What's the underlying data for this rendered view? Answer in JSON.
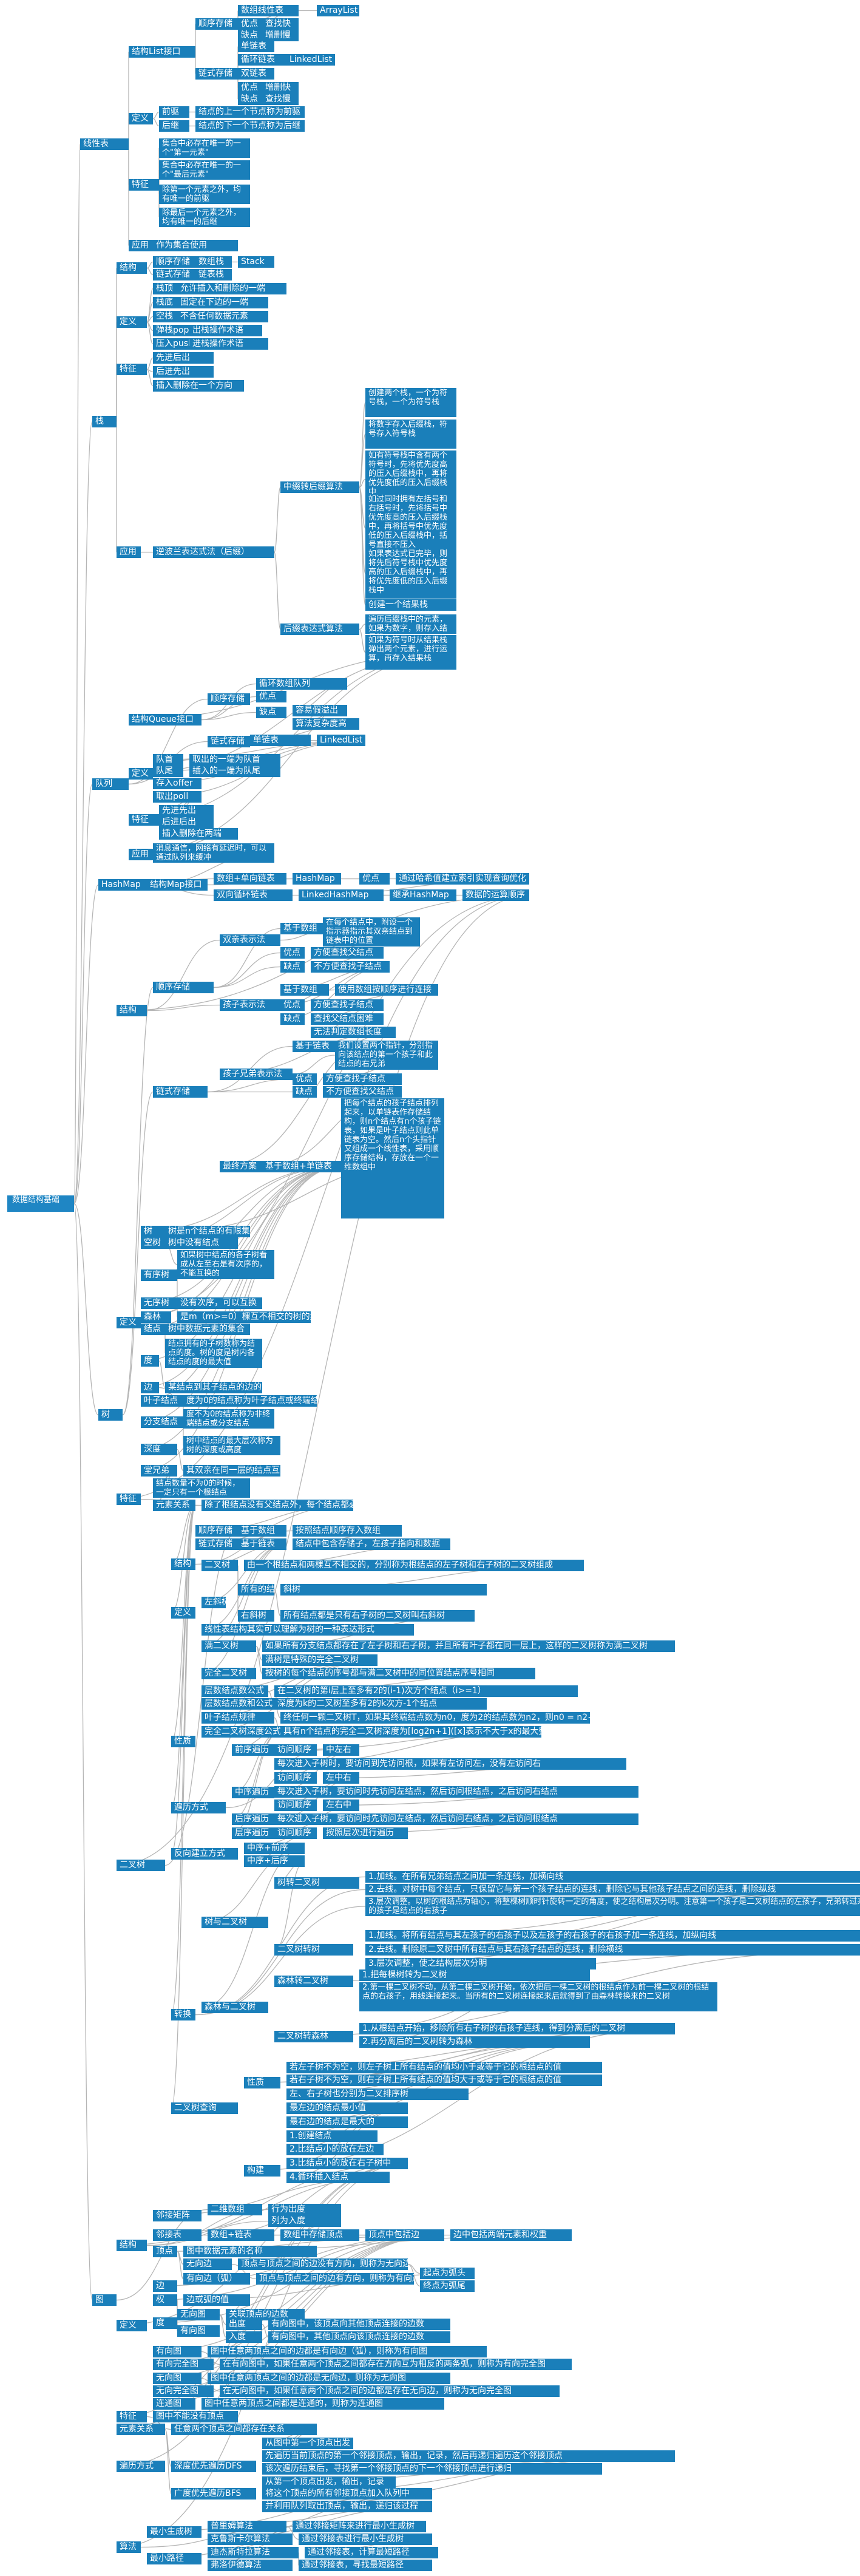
{
  "nodes": [
    {
      "t": "数据结构基础"
    },
    {
      "t": "线性表"
    },
    {
      "t": "结构List接口"
    },
    {
      "t": "顺序存储"
    },
    {
      "t": "数组线性表"
    },
    {
      "t": "ArrayList"
    },
    {
      "t": "优点"
    },
    {
      "t": "查找快"
    },
    {
      "t": "缺点"
    },
    {
      "t": "增删慢"
    },
    {
      "t": "链式存储"
    },
    {
      "t": "单链表"
    },
    {
      "t": "循环链表"
    },
    {
      "t": "LinkedList"
    },
    {
      "t": "双链表"
    },
    {
      "t": "优点"
    },
    {
      "t": "增删快"
    },
    {
      "t": "缺点"
    },
    {
      "t": "查找慢"
    },
    {
      "t": "定义"
    },
    {
      "t": "前驱"
    },
    {
      "t": "结点的上一个节点称为前驱"
    },
    {
      "t": "后继"
    },
    {
      "t": "结点的下一个节点称为后继"
    },
    {
      "t": "特征"
    },
    {
      "t": "集合中必存在唯一的一个\"第一元素\""
    },
    {
      "t": "集合中必存在唯一的一个\"最后元素\""
    },
    {
      "t": "除第一个元素之外，均有唯一的前驱"
    },
    {
      "t": "除最后一个元素之外，均有唯一的后继"
    },
    {
      "t": "应用"
    },
    {
      "t": "作为集合使用"
    },
    {
      "t": "栈"
    },
    {
      "t": "结构"
    },
    {
      "t": "顺序存储"
    },
    {
      "t": "数组栈"
    },
    {
      "t": "Stack"
    },
    {
      "t": "链式存储"
    },
    {
      "t": "链表栈"
    },
    {
      "t": "定义"
    },
    {
      "t": "栈顶"
    },
    {
      "t": "允许插入和删除的一端"
    },
    {
      "t": "栈底"
    },
    {
      "t": "固定在下边的一端"
    },
    {
      "t": "空栈"
    },
    {
      "t": "不含任何数据元素"
    },
    {
      "t": "弹栈pop"
    },
    {
      "t": "出栈操作术语"
    },
    {
      "t": "压入push"
    },
    {
      "t": "进栈操作术语"
    },
    {
      "t": "特征"
    },
    {
      "t": "先进后出"
    },
    {
      "t": "后进先出"
    },
    {
      "t": "插入删除在一个方向"
    },
    {
      "t": "应用"
    },
    {
      "t": "逆波兰表达式法（后缀）"
    },
    {
      "t": "中缀转后缀算法"
    },
    {
      "t": "创建两个栈，一个为符号栈，一个为符号栈"
    },
    {
      "t": "将数字存入后缀栈，符号存入符号栈"
    },
    {
      "t": "如有符号栈中含有两个符号时，先将优先度高的压入后缀栈中，再将优先度低的压入后缀栈中"
    },
    {
      "t": "如过同时拥有左括号和右括号时，先将括号中优先度高的压入后缀栈中，再将括号中优先度低的压入后缀栈中，括号直接不压入"
    },
    {
      "t": "如果表达式已完毕，则将先后符号栈中优先度高的压入后缀栈中，再将优先度低的压入后缀栈中"
    },
    {
      "t": "创建一个结果栈"
    },
    {
      "t": "后缀表达式算法"
    },
    {
      "t": "遍历后缀栈中的元素，如果为数字，则存入结果栈"
    },
    {
      "t": "如果为符号时从结果栈弹出两个元素，进行运算，再存入结果栈"
    },
    {
      "t": "队列"
    },
    {
      "t": "结构Queue接口"
    },
    {
      "t": "顺序存储"
    },
    {
      "t": "循环数组队列"
    },
    {
      "t": "优点"
    },
    {
      "t": "容易假溢出"
    },
    {
      "t": "缺点"
    },
    {
      "t": "算法复杂度高"
    },
    {
      "t": "链式存储"
    },
    {
      "t": "单链表"
    },
    {
      "t": "LinkedList"
    },
    {
      "t": "定义"
    },
    {
      "t": "队首"
    },
    {
      "t": "取出的一端为队首"
    },
    {
      "t": "队尾"
    },
    {
      "t": "插入的一端为队尾"
    },
    {
      "t": "存入offer"
    },
    {
      "t": "取出poll"
    },
    {
      "t": "特征"
    },
    {
      "t": "先进先出"
    },
    {
      "t": "后进后出"
    },
    {
      "t": "插入删除在两端"
    },
    {
      "t": "应用"
    },
    {
      "t": "消息通信，网络有延迟时，可以通过队列来缓冲"
    },
    {
      "t": "HashMap"
    },
    {
      "t": "结构Map接口"
    },
    {
      "t": "数组+单向链表"
    },
    {
      "t": "HashMap"
    },
    {
      "t": "优点"
    },
    {
      "t": "通过哈希值建立索引实现查询优化"
    },
    {
      "t": "双向循环链表"
    },
    {
      "t": "LinkedHashMap"
    },
    {
      "t": "继承HashMap"
    },
    {
      "t": "数据的运算顺序"
    },
    {
      "t": "树"
    },
    {
      "t": "结构"
    },
    {
      "t": "顺序存储"
    },
    {
      "t": "双亲表示法"
    },
    {
      "t": "基于数组"
    },
    {
      "t": "在每个结点中，附设一个指示器指示其双亲结点到链表中的位置"
    },
    {
      "t": "优点"
    },
    {
      "t": "方便查找父结点"
    },
    {
      "t": "缺点"
    },
    {
      "t": "不方便查找子结点"
    },
    {
      "t": "孩子表示法"
    },
    {
      "t": "基于数组"
    },
    {
      "t": "使用数组按顺序进行连接"
    },
    {
      "t": "优点"
    },
    {
      "t": "方便查找子结点"
    },
    {
      "t": "缺点"
    },
    {
      "t": "查找父结点困难"
    },
    {
      "t": "无法判定数组长度"
    },
    {
      "t": "链式存储"
    },
    {
      "t": "孩子兄弟表示法"
    },
    {
      "t": "基于链表"
    },
    {
      "t": "我们设置两个指针，分别指向该结点的第一个孩子和此结点的右兄弟"
    },
    {
      "t": "优点"
    },
    {
      "t": "方便查找子结点"
    },
    {
      "t": "缺点"
    },
    {
      "t": "不方便查找父结点"
    },
    {
      "t": "最终方案"
    },
    {
      "t": "基于数组+单链表"
    },
    {
      "t": "把每个结点的孩子结点排列起来，以单链表作存储结构，则n个结点有n个孩子链表，如果是叶子结点则此单链表为空。然后n个头指针又组成一个线性表，采用顺序存储结构，存放在一个一维数组中"
    },
    {
      "t": "定义"
    },
    {
      "t": "树"
    },
    {
      "t": "树是n个结点的有限集"
    },
    {
      "t": "空树"
    },
    {
      "t": "树中没有结点"
    },
    {
      "t": "有序树"
    },
    {
      "t": "如果树中结点的各子树看成从左至右是有次序的，不能互换的"
    },
    {
      "t": "无序树"
    },
    {
      "t": "没有次序，可以互换"
    },
    {
      "t": "森林"
    },
    {
      "t": "是m（m>=0）棵互不相交的树的集合"
    },
    {
      "t": "结点"
    },
    {
      "t": "树中数据元素的集合"
    },
    {
      "t": "度"
    },
    {
      "t": "结点拥有的子树数称为结点的度。树的度是树内各结点的度的最大值"
    },
    {
      "t": "边"
    },
    {
      "t": "某结点到其子结点的边的数"
    },
    {
      "t": "叶子结点"
    },
    {
      "t": "度为0的结点称为叶子结点或终端结点"
    },
    {
      "t": "分支结点"
    },
    {
      "t": "度不为0的结点称为非终端结点或分支结点"
    },
    {
      "t": "深度"
    },
    {
      "t": "树中结点的最大层次称为树的深度或高度"
    },
    {
      "t": "堂兄弟"
    },
    {
      "t": "其双亲在同一层的结点互为堂兄弟"
    },
    {
      "t": "特征"
    },
    {
      "t": "结点数量不为0的时候，一定只有一个根结点"
    },
    {
      "t": "元素关系"
    },
    {
      "t": "除了根结点没有父结点外，每个结点都必须拥有一父结点"
    },
    {
      "t": "二叉树"
    },
    {
      "t": "结构"
    },
    {
      "t": "顺序存储"
    },
    {
      "t": "基于数组"
    },
    {
      "t": "按照结点顺序存入数组"
    },
    {
      "t": "链式存储"
    },
    {
      "t": "基于链表"
    },
    {
      "t": "结点中包含存储子，左孩子指向和数据"
    },
    {
      "t": "定义"
    },
    {
      "t": "二叉树"
    },
    {
      "t": "由一个根结点和两棵互不相交的，分别称为根结点的左子树和右子树的二叉树组成"
    },
    {
      "t": "左斜树"
    },
    {
      "t": "所有的结点都只有左子树的二叉树叫左斜树"
    },
    {
      "t": "斜树"
    },
    {
      "t": "右斜树"
    },
    {
      "t": "所有结点都是只有右子树的二叉树叫右斜树"
    },
    {
      "t": "线性表结构其实可以理解为树的一种表达形式"
    },
    {
      "t": "满二叉树"
    },
    {
      "t": "如果所有分支结点都存在了左子树和右子树，并且所有叶子都在同一层上，这样的二叉树称为满二叉树"
    },
    {
      "t": "完全二叉树"
    },
    {
      "t": "满树是特殊的完全二叉树"
    },
    {
      "t": "按树的每个结点的序号都与满二叉树中的同位置结点序号相同"
    },
    {
      "t": "性质"
    },
    {
      "t": "层数结点数公式"
    },
    {
      "t": "在二叉树的第i层上至多有2的(i-1)次方个结点（i>=1）"
    },
    {
      "t": "层数结点数和公式"
    },
    {
      "t": "深度为k的二叉树至多有2的k次方-1个结点"
    },
    {
      "t": "叶子结点规律"
    },
    {
      "t": "终任何一颗二叉树T，如果其终端结点数为n0，度为2的结点数为n2，则n0 = n2+1"
    },
    {
      "t": "完全二叉树深度公式"
    },
    {
      "t": "具有n个结点的完全二叉树深度为[log2n+1]([x]表示不大于x的最大整数)"
    },
    {
      "t": "遍历方式"
    },
    {
      "t": "前序遍历"
    },
    {
      "t": "访问顺序"
    },
    {
      "t": "中左右"
    },
    {
      "t": "每次进入子树时，要访问到先访问根，如果有左访问左，没有左访问右"
    },
    {
      "t": "中序遍历"
    },
    {
      "t": "访问顺序"
    },
    {
      "t": "左中右"
    },
    {
      "t": "每次进入子树，要访问时先访问左结点，然后访问根结点，之后访问右结点"
    },
    {
      "t": "后序遍历"
    },
    {
      "t": "访问顺序"
    },
    {
      "t": "左右中"
    },
    {
      "t": "每次进入子树，要访问时先访问左结点，然后访问右结点，之后访问根结点"
    },
    {
      "t": "层序遍历"
    },
    {
      "t": "访问顺序"
    },
    {
      "t": "按照层次进行遍历"
    },
    {
      "t": "反向建立方式"
    },
    {
      "t": "中序+前序"
    },
    {
      "t": "中序+后序"
    },
    {
      "t": "转换"
    },
    {
      "t": "树与二叉树"
    },
    {
      "t": "树转二叉树"
    },
    {
      "t": "1.加线。在所有兄弟结点之间加一条连线，加横向线"
    },
    {
      "t": "2.去线。对树中每个结点，只保留它与第一个孩子结点的连线，删除它与其他孩子结点之间的连线，删除纵线"
    },
    {
      "t": "3.层次调整。以树的根结点为轴心，将整棵树顺时针旋转一定的角度，使之结构层次分明。注意第一个孩子是二叉树结点的左孩子，兄弟转过来的孩子是结点的右孩子"
    },
    {
      "t": "二叉树转树"
    },
    {
      "t": "1.加线。将所有结点与其左孩子的右孩子以及左孩子的右孩子的右孩子加一条连线，加纵向线"
    },
    {
      "t": "2.去线。删除原二叉树中所有结点与其右孩子结点的连线，删除横线"
    },
    {
      "t": "3.层次调整，使之结构层次分明"
    },
    {
      "t": "森林与二叉树"
    },
    {
      "t": "森林转二叉树"
    },
    {
      "t": "1.把每棵树转为二叉树"
    },
    {
      "t": "2.第一棵二叉树不动，从第二棵二叉树开始，依次把后一棵二叉树的根结点作为前一棵二叉树的根结点的右孩子，用线连接起来。当所有的二叉树连接起来后就得到了由森林转换来的二叉树"
    },
    {
      "t": "二叉树转森林"
    },
    {
      "t": "1.从根结点开始，移除所有右子树的右孩子连线，得到分离后的二叉树"
    },
    {
      "t": "2.再分离后的二叉树转为森林"
    },
    {
      "t": "二叉树查询"
    },
    {
      "t": "性质"
    },
    {
      "t": "若左子树不为空，则左子树上所有结点的值均小于或等于它的根结点的值"
    },
    {
      "t": "若右子树不为空，则右子树上所有结点的值均大于或等于它的根结点的值"
    },
    {
      "t": "左、右子树也分别为二叉排序树"
    },
    {
      "t": "最左边的结点最小值"
    },
    {
      "t": "最右边的结点是最大的"
    },
    {
      "t": "构建"
    },
    {
      "t": "1.创建结点"
    },
    {
      "t": "2.比结点小的放在左边"
    },
    {
      "t": "3.比结点小的放在右子树中"
    },
    {
      "t": "4.循环插入结点"
    },
    {
      "t": "图"
    },
    {
      "t": "结构"
    },
    {
      "t": "邻接矩阵"
    },
    {
      "t": "二维数组"
    },
    {
      "t": "行为出度"
    },
    {
      "t": "列为入度"
    },
    {
      "t": "邻接表"
    },
    {
      "t": "数组+链表"
    },
    {
      "t": "数组中存储顶点"
    },
    {
      "t": "顶点中包括边"
    },
    {
      "t": "边中包括两端元素和权重"
    },
    {
      "t": "定义"
    },
    {
      "t": "顶点"
    },
    {
      "t": "图中数据元素的名称"
    },
    {
      "t": "边"
    },
    {
      "t": "无向边"
    },
    {
      "t": "顶点与顶点之间的边没有方向，则称为无向边"
    },
    {
      "t": "有向边（弧）"
    },
    {
      "t": "顶点与顶点之间的边有方向，则称为有向边"
    },
    {
      "t": "起点为弧头"
    },
    {
      "t": "终点为弧尾"
    },
    {
      "t": "权"
    },
    {
      "t": "边或弧的值"
    },
    {
      "t": "度"
    },
    {
      "t": "无向图"
    },
    {
      "t": "关联顶点的边数"
    },
    {
      "t": "有向图"
    },
    {
      "t": "出度"
    },
    {
      "t": "有向图中，该顶点向其他顶点连接的边数"
    },
    {
      "t": "入度"
    },
    {
      "t": "有向图中，其他顶点向该顶点连接的边数"
    },
    {
      "t": "有向图"
    },
    {
      "t": "图中任意两顶点之间的边都是有向边（弧），则称为有向图"
    },
    {
      "t": "有向完全图"
    },
    {
      "t": "在有向图中，如果任意两个顶点之间都存在方向互为相反的两条弧，则称为有向完全图"
    },
    {
      "t": "无向图"
    },
    {
      "t": "图中任意两顶点之间的边都是无向边，则称为无向图"
    },
    {
      "t": "无向完全图"
    },
    {
      "t": "在无向图中，如果任意两个顶点之间的边都是存在无向边，则称为无向完全图"
    },
    {
      "t": "连通图"
    },
    {
      "t": "图中任意两顶点之间都是连通的，则称为连通图"
    },
    {
      "t": "特征"
    },
    {
      "t": "图中不能没有顶点"
    },
    {
      "t": "元素关系"
    },
    {
      "t": "任意两个顶点之间都存在关系"
    },
    {
      "t": "遍历方式"
    },
    {
      "t": "深度优先遍历DFS"
    },
    {
      "t": "从图中第一个顶点出发"
    },
    {
      "t": "先遍历当前顶点的第一个邻接顶点，输出，记录，然后再递归遍历这个邻接顶点"
    },
    {
      "t": "该次遍历结束后，寻找第一个邻接顶点的下一个邻接顶点进行递归"
    },
    {
      "t": "广度优先遍历BFS"
    },
    {
      "t": "从第一个顶点出发，输出，记录"
    },
    {
      "t": "将这个顶点的所有邻接顶点加入队列中"
    },
    {
      "t": "并利用队列取出顶点，输出，递归该过程"
    },
    {
      "t": "算法"
    },
    {
      "t": "最小生成树"
    },
    {
      "t": "普里姆算法"
    },
    {
      "t": "通过邻接矩阵来进行最小生成树"
    },
    {
      "t": "克鲁斯卡尔算法"
    },
    {
      "t": "通过邻接表进行最小生成树"
    },
    {
      "t": "最小路径"
    },
    {
      "t": "迪杰斯特拉算法"
    },
    {
      "t": "通过邻接表，计算最短路径"
    },
    {
      "t": "弗洛伊德算法"
    },
    {
      "t": "通过邻接表，寻找最短路径"
    }
  ]
}
